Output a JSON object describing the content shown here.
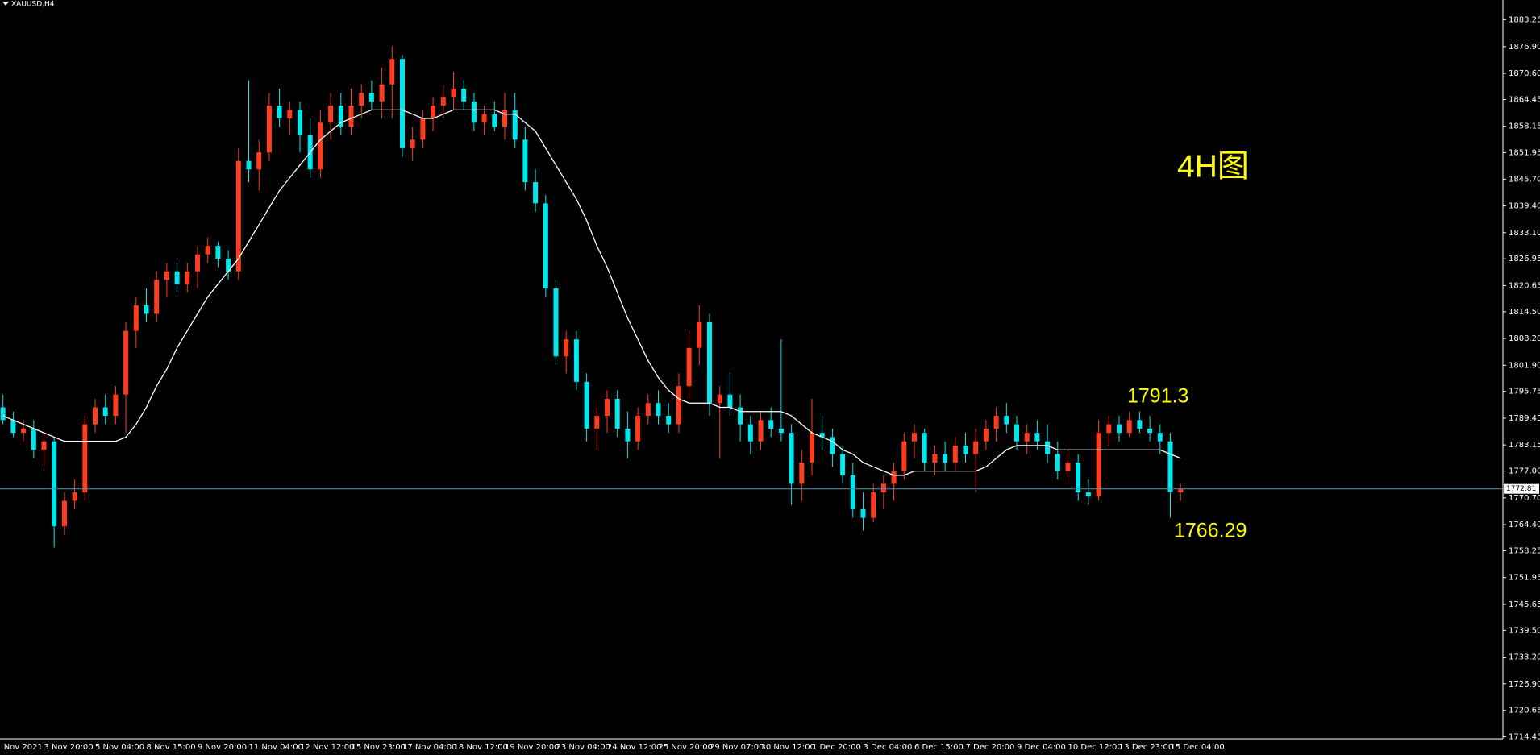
{
  "chart_data": {
    "type": "candlestick",
    "title": "XAUUSD,H4",
    "annotations": [
      "4H图"
    ],
    "high_label": 1791.3,
    "low_label": 1766.29,
    "last_price": 1772.81,
    "up_color": "#ff3c1e",
    "down_color": "#00e8ee",
    "ma_color": "#ffffff",
    "price_line_color": "#5f8fae",
    "ylim": [
      1713.96,
      1887.87
    ],
    "yticks": [
      1883.25,
      {
        "value": 1876.9,
        "label": "1876.90"
      },
      {
        "value": 1870.6,
        "label": "1870.60"
      },
      1864.45,
      1858.15,
      1851.95,
      {
        "value": 1845.7,
        "label": "1845.70"
      },
      {
        "value": 1839.4,
        "label": "1839.40"
      },
      {
        "value": 1833.1,
        "label": "1833.10"
      },
      1826.95,
      1820.65,
      {
        "value": 1814.5,
        "label": "1814.50"
      },
      {
        "value": 1808.2,
        "label": "1808.20"
      },
      {
        "value": 1801.9,
        "label": "1801.90"
      },
      1795.75,
      1789.45,
      1783.15,
      {
        "value": 1777,
        "label": "1777.00"
      },
      {
        "value": 1770.7,
        "label": "1770.70"
      },
      {
        "value": 1764.4,
        "label": "1764.40"
      },
      1758.25,
      1751.95,
      1745.65,
      {
        "value": 1739.5,
        "label": "1739.50"
      },
      {
        "value": 1733.2,
        "label": "1733.20"
      },
      {
        "value": 1726.9,
        "label": "1726.90"
      },
      1720.65,
      1714.45
    ],
    "categories": [
      "Nov 2021",
      null,
      null,
      null,
      "3 Nov 20:00",
      null,
      null,
      null,
      null,
      "5 Nov 04:00",
      null,
      null,
      null,
      null,
      "8 Nov 15:00",
      null,
      null,
      null,
      null,
      "9 Nov 20:00",
      null,
      null,
      null,
      null,
      "11 Nov 04:00",
      null,
      null,
      null,
      null,
      "12 Nov 12:00",
      null,
      null,
      null,
      null,
      "15 Nov 23:00",
      null,
      null,
      null,
      null,
      "17 Nov 04:00",
      null,
      null,
      null,
      null,
      "18 Nov 12:00",
      null,
      null,
      null,
      null,
      "19 Nov 20:00",
      null,
      null,
      null,
      null,
      "23 Nov 04:00",
      null,
      null,
      null,
      null,
      "24 Nov 12:00",
      null,
      null,
      null,
      null,
      "25 Nov 20:00",
      null,
      null,
      null,
      null,
      "29 Nov 07:00",
      null,
      null,
      null,
      null,
      "30 Nov 12:00",
      null,
      null,
      null,
      null,
      "1 Dec 20:00",
      null,
      null,
      null,
      null,
      "3 Dec 04:00",
      null,
      null,
      null,
      null,
      "6 Dec 15:00",
      null,
      null,
      null,
      null,
      "7 Dec 20:00",
      null,
      null,
      null,
      null,
      "9 Dec 04:00",
      null,
      null,
      null,
      null,
      "10 Dec 12:00",
      null,
      null,
      null,
      null,
      "13 Dec 23:00",
      null,
      null,
      null,
      null,
      "15 Dec 04:00",
      null
    ],
    "ohlc": [
      [
        1792,
        1795,
        1788,
        1789
      ],
      [
        1789,
        1791,
        1785,
        1786
      ],
      [
        1786,
        1789,
        1784,
        1787
      ],
      [
        1787,
        1789,
        1780,
        1782
      ],
      [
        1782,
        1786,
        1778,
        1784
      ],
      [
        1784,
        1785,
        1759,
        1764
      ],
      [
        1764,
        1772,
        1762,
        1770
      ],
      [
        1770,
        1775,
        1768,
        1772
      ],
      [
        1772,
        1790,
        1770,
        1788
      ],
      [
        1788,
        1794,
        1786,
        1792
      ],
      [
        1792,
        1795,
        1788,
        1790
      ],
      [
        1790,
        1797,
        1788,
        1795
      ],
      [
        1795,
        1812,
        1786,
        1810
      ],
      [
        1810,
        1818,
        1806,
        1816
      ],
      [
        1816,
        1820,
        1812,
        1814
      ],
      [
        1814,
        1824,
        1812,
        1822
      ],
      [
        1822,
        1826,
        1818,
        1824
      ],
      [
        1824,
        1826,
        1819,
        1821
      ],
      [
        1821,
        1826,
        1819,
        1824
      ],
      [
        1824,
        1830,
        1820,
        1828
      ],
      [
        1828,
        1832,
        1826,
        1830
      ],
      [
        1830,
        1831,
        1825,
        1827
      ],
      [
        1827,
        1829,
        1822,
        1824
      ],
      [
        1824,
        1853,
        1822,
        1850
      ],
      [
        1850,
        1869,
        1845,
        1848
      ],
      [
        1848,
        1855,
        1843,
        1852
      ],
      [
        1852,
        1866,
        1850,
        1863
      ],
      [
        1863,
        1867,
        1858,
        1860
      ],
      [
        1860,
        1864,
        1856,
        1862
      ],
      [
        1862,
        1864,
        1852,
        1856
      ],
      [
        1856,
        1860,
        1846,
        1848
      ],
      [
        1848,
        1862,
        1846,
        1859
      ],
      [
        1859,
        1866,
        1855,
        1863
      ],
      [
        1863,
        1866,
        1856,
        1858
      ],
      [
        1858,
        1867,
        1856,
        1863
      ],
      [
        1863,
        1868,
        1860,
        1866
      ],
      [
        1866,
        1869,
        1862,
        1864
      ],
      [
        1864,
        1872,
        1860,
        1868
      ],
      [
        1868,
        1877,
        1860,
        1874
      ],
      [
        1874,
        1875,
        1851,
        1853
      ],
      [
        1853,
        1858,
        1850,
        1855
      ],
      [
        1855,
        1862,
        1853,
        1860
      ],
      [
        1860,
        1865,
        1857,
        1863
      ],
      [
        1863,
        1868,
        1860,
        1865
      ],
      [
        1865,
        1871,
        1862,
        1867
      ],
      [
        1867,
        1869,
        1862,
        1864
      ],
      [
        1864,
        1866,
        1857,
        1859
      ],
      [
        1859,
        1863,
        1856,
        1861
      ],
      [
        1861,
        1864,
        1857,
        1858
      ],
      [
        1858,
        1866,
        1855,
        1862
      ],
      [
        1862,
        1866,
        1853,
        1855
      ],
      [
        1855,
        1858,
        1843,
        1845
      ],
      [
        1845,
        1848,
        1838,
        1840
      ],
      [
        1840,
        1842,
        1818,
        1820
      ],
      [
        1820,
        1822,
        1802,
        1804
      ],
      [
        1804,
        1810,
        1800,
        1808
      ],
      [
        1808,
        1810,
        1796,
        1798
      ],
      [
        1798,
        1800,
        1784,
        1787
      ],
      [
        1787,
        1792,
        1782,
        1790
      ],
      [
        1790,
        1796,
        1786,
        1794
      ],
      [
        1794,
        1796,
        1785,
        1787
      ],
      [
        1787,
        1791,
        1780,
        1784
      ],
      [
        1784,
        1792,
        1782,
        1790
      ],
      [
        1790,
        1795,
        1788,
        1793
      ],
      [
        1793,
        1796,
        1788,
        1790
      ],
      [
        1790,
        1793,
        1786,
        1788
      ],
      [
        1788,
        1800,
        1786,
        1797
      ],
      [
        1797,
        1810,
        1794,
        1806
      ],
      [
        1806,
        1816,
        1802,
        1812
      ],
      [
        1812,
        1814,
        1790,
        1793
      ],
      [
        1793,
        1797,
        1780,
        1795
      ],
      [
        1795,
        1800,
        1790,
        1792
      ],
      [
        1792,
        1795,
        1784,
        1788
      ],
      [
        1788,
        1790,
        1781,
        1784
      ],
      [
        1784,
        1791,
        1782,
        1789
      ],
      [
        1789,
        1792,
        1785,
        1787
      ],
      [
        1787,
        1808,
        1784,
        1786
      ],
      [
        1786,
        1788,
        1769,
        1774
      ],
      [
        1774,
        1782,
        1770,
        1779
      ],
      [
        1779,
        1794,
        1776,
        1786
      ],
      [
        1786,
        1790,
        1782,
        1785
      ],
      [
        1785,
        1787,
        1778,
        1781
      ],
      [
        1781,
        1783,
        1774,
        1776
      ],
      [
        1776,
        1779,
        1766,
        1768
      ],
      [
        1768,
        1772,
        1763,
        1766
      ],
      [
        1766,
        1774,
        1765,
        1772
      ],
      [
        1772,
        1776,
        1768,
        1774
      ],
      [
        1774,
        1779,
        1770,
        1777
      ],
      [
        1777,
        1786,
        1775,
        1784
      ],
      [
        1784,
        1788,
        1780,
        1786
      ],
      [
        1786,
        1787,
        1777,
        1779
      ],
      [
        1779,
        1783,
        1776,
        1781
      ],
      [
        1781,
        1784,
        1777,
        1779
      ],
      [
        1779,
        1785,
        1777,
        1783
      ],
      [
        1783,
        1786,
        1779,
        1781
      ],
      [
        1781,
        1787,
        1772,
        1784
      ],
      [
        1784,
        1789,
        1782,
        1787
      ],
      [
        1787,
        1792,
        1784,
        1790
      ],
      [
        1790,
        1793,
        1786,
        1788
      ],
      [
        1788,
        1790,
        1782,
        1784
      ],
      [
        1784,
        1788,
        1781,
        1786
      ],
      [
        1786,
        1789,
        1782,
        1784
      ],
      [
        1784,
        1788,
        1779,
        1781
      ],
      [
        1781,
        1784,
        1775,
        1777
      ],
      [
        1777,
        1782,
        1774,
        1779
      ],
      [
        1779,
        1781,
        1770,
        1772
      ],
      [
        1772,
        1775,
        1769,
        1771
      ],
      [
        1771,
        1789,
        1770,
        1786
      ],
      [
        1786,
        1790,
        1783,
        1788
      ],
      [
        1788,
        1790,
        1784,
        1786
      ],
      [
        1786,
        1791,
        1785,
        1789
      ],
      [
        1789,
        1791,
        1786,
        1787
      ],
      [
        1787,
        1790,
        1784,
        1786
      ],
      [
        1786,
        1788,
        1781,
        1784
      ],
      [
        1784,
        1786,
        1766,
        1772
      ],
      [
        1772,
        1774,
        1770,
        1772.81
      ]
    ],
    "ma": [
      1790,
      1789,
      1788,
      1787,
      1786,
      1785,
      1784,
      1784,
      1784,
      1784,
      1784,
      1784,
      1785,
      1788,
      1792,
      1797,
      1801,
      1806,
      1810,
      1814,
      1818,
      1821,
      1824,
      1827,
      1831,
      1835,
      1839,
      1843,
      1846,
      1849,
      1852,
      1855,
      1857,
      1859,
      1860,
      1861,
      1862,
      1862,
      1862,
      1862,
      1861,
      1860,
      1860,
      1861,
      1862,
      1862,
      1862,
      1862,
      1862,
      1861,
      1861,
      1859,
      1857,
      1853,
      1849,
      1845,
      1841,
      1836,
      1830,
      1825,
      1819,
      1813,
      1808,
      1803,
      1799,
      1796,
      1794,
      1793,
      1793,
      1793,
      1792,
      1792,
      1791,
      1791,
      1791,
      1791,
      1791,
      1790,
      1788,
      1786,
      1785,
      1784,
      1782,
      1781,
      1779,
      1778,
      1777,
      1776,
      1776,
      1777,
      1777,
      1777,
      1777,
      1777,
      1777,
      1777,
      1778,
      1780,
      1782,
      1783,
      1783,
      1783,
      1783,
      1782,
      1782,
      1782,
      1782,
      1782,
      1782,
      1782,
      1782,
      1782,
      1782,
      1782,
      1781,
      1780
    ]
  }
}
